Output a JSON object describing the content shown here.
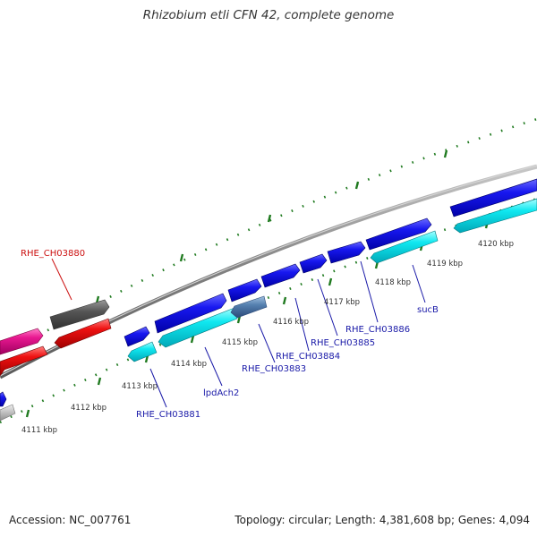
{
  "title": "Rhizobium etli CFN 42, complete genome",
  "footer": {
    "accession": "Accession: NC_007761",
    "summary": "Topology: circular; Length: 4,381,608 bp; Genes: 4,094"
  },
  "colors": {
    "background": "#ffffff",
    "backbone": "#888888",
    "ticks": "#1f7a1f",
    "forward_gene": "#1010e0",
    "reverse_gene": "#00e0e8",
    "selected_gene": "#5080b0",
    "highlight_red": "#ee1111",
    "highlight_magenta": "#e81890",
    "highlight_dark": "#555555",
    "gene_label_blue": "#1a1aa8",
    "gene_label_red": "#cc1111"
  },
  "kbp_labels": [
    {
      "text": "4111 kbp"
    },
    {
      "text": "4112 kbp"
    },
    {
      "text": "4113 kbp"
    },
    {
      "text": "4114 kbp"
    },
    {
      "text": "4115 kbp"
    },
    {
      "text": "4116 kbp"
    },
    {
      "text": "4117 kbp"
    },
    {
      "text": "4118 kbp"
    },
    {
      "text": "4119 kbp"
    },
    {
      "text": "4120 kbp"
    }
  ],
  "gene_labels": [
    {
      "text": "RHE_CH03880",
      "color": "red"
    },
    {
      "text": "RHE_CH03881",
      "color": "blue"
    },
    {
      "text": "lpdAch2",
      "color": "blue"
    },
    {
      "text": "RHE_CH03883",
      "color": "blue"
    },
    {
      "text": "RHE_CH03884",
      "color": "blue"
    },
    {
      "text": "RHE_CH03885",
      "color": "blue"
    },
    {
      "text": "RHE_CH03886",
      "color": "blue"
    },
    {
      "text": "sucB",
      "color": "blue"
    }
  ]
}
